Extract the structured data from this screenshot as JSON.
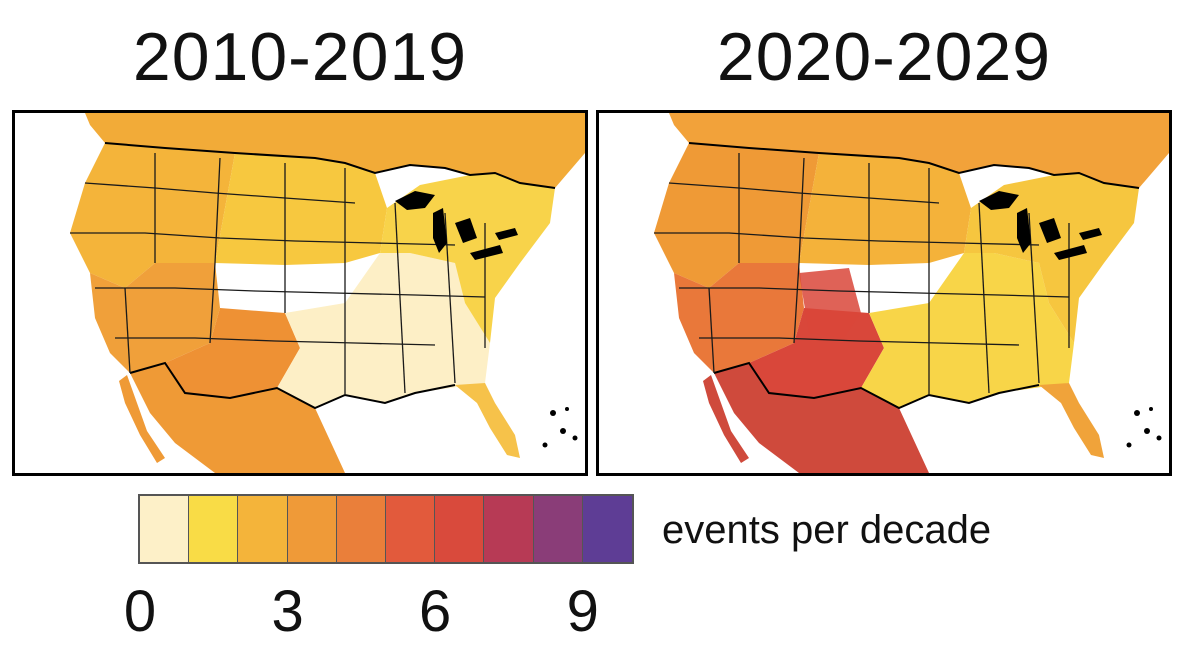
{
  "panels": [
    {
      "title": "2010-2019",
      "zones": {
        "ocean": "#ffffff",
        "canada": "#f2ab38",
        "north": "#f7c83f",
        "northwest": "#f4b43a",
        "west": "#f0a03a",
        "southwest": "#ee9134",
        "mexico": "#ef9a36",
        "southeast": "#fdefc6",
        "northeast": "#f8d34a",
        "florida": "#f6c24a"
      }
    },
    {
      "title": "2020-2029",
      "zones": {
        "ocean": "#ffffff",
        "canada": "#f2a23a",
        "north": "#f4b23a",
        "northwest": "#ef9a36",
        "west": "#e9783a",
        "southwest": "#d9473a",
        "mexico": "#cf4a3c",
        "southeast": "#f8d548",
        "northeast": "#f6c63f",
        "florida": "#f0a33a"
      }
    }
  ],
  "colorbar": {
    "unit_label": "events per decade",
    "colors": [
      "#fdf0c8",
      "#f9dc46",
      "#f4b43a",
      "#ef9a38",
      "#ea7f3a",
      "#e25a3c",
      "#d94a3c",
      "#b73a55",
      "#8a3d78",
      "#5e3d95"
    ],
    "ticks": [
      {
        "label": "0",
        "value": 0
      },
      {
        "label": "3",
        "value": 3
      },
      {
        "label": "6",
        "value": 6
      },
      {
        "label": "9",
        "value": 9
      }
    ]
  }
}
